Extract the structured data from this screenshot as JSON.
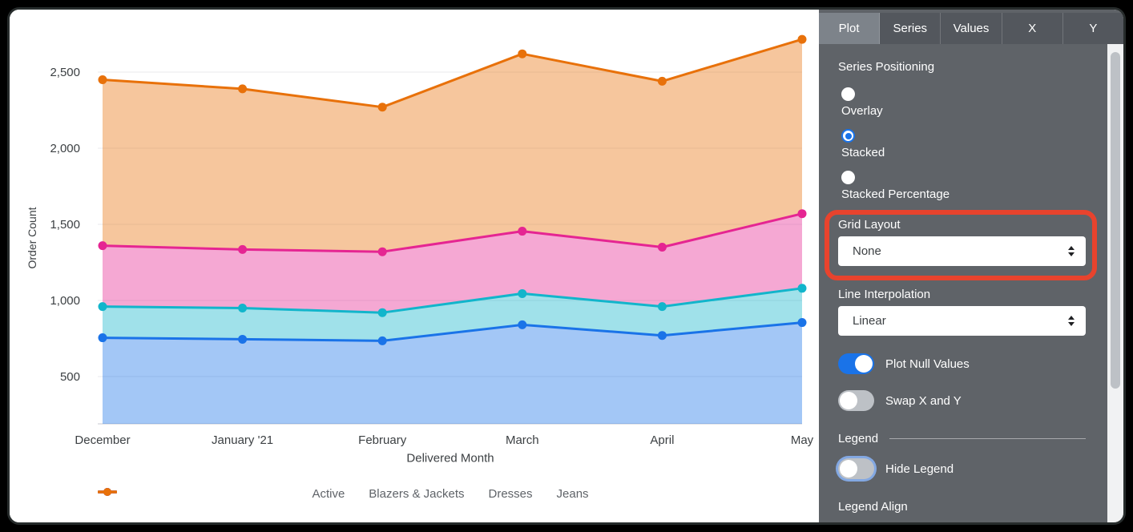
{
  "chart": {
    "y_axis_title": "Order Count",
    "x_axis_title": "Delivered Month",
    "text_color": "#3c4043",
    "legend_text_color": "#5f6368",
    "gridline_color": "#e8eaed"
  },
  "chart_data": {
    "type": "area",
    "stacking": "stacked",
    "title": "",
    "xlabel": "Delivered Month",
    "ylabel": "Order Count",
    "categories": [
      "December",
      "January '21",
      "February",
      "March",
      "April",
      "May"
    ],
    "series": [
      {
        "name": "Active",
        "color": "#1A73E8",
        "values": [
          755,
          745,
          735,
          840,
          770,
          855
        ]
      },
      {
        "name": "Blazers & Jackets",
        "color": "#12B5CB",
        "values": [
          205,
          205,
          185,
          205,
          190,
          225
        ]
      },
      {
        "name": "Dresses",
        "color": "#E52592",
        "values": [
          400,
          385,
          400,
          410,
          390,
          490
        ]
      },
      {
        "name": "Jeans",
        "color": "#E8710A",
        "values": [
          1090,
          1055,
          950,
          1165,
          1090,
          1145
        ]
      }
    ],
    "cumulative_tops": {
      "Active": [
        755,
        745,
        735,
        840,
        770,
        855
      ],
      "Blazers & Jackets": [
        960,
        950,
        920,
        1045,
        960,
        1080
      ],
      "Dresses": [
        1360,
        1335,
        1320,
        1455,
        1350,
        1570
      ],
      "Jeans": [
        2450,
        2390,
        2270,
        2620,
        2440,
        2715
      ]
    },
    "y_tick_values": [
      2500,
      2000,
      1500,
      1000,
      500
    ],
    "y_tick_labels": [
      "2,500",
      "2,000",
      "1,500",
      "1,000",
      "500"
    ],
    "ylim": [
      190,
      2870
    ],
    "grid": "horizontal",
    "legend_position": "bottom"
  },
  "panel": {
    "background": "#5f6368",
    "accent_color": "#1a73e8",
    "highlight_color": "#e8432d",
    "tabs": [
      {
        "label": "Plot",
        "selected": true
      },
      {
        "label": "Series",
        "selected": false
      },
      {
        "label": "Values",
        "selected": false
      },
      {
        "label": "X",
        "selected": false
      },
      {
        "label": "Y",
        "selected": false
      }
    ],
    "series_positioning": {
      "label": "Series Positioning",
      "options": [
        {
          "label": "Overlay",
          "selected": false
        },
        {
          "label": "Stacked",
          "selected": true
        },
        {
          "label": "Stacked Percentage",
          "selected": false
        }
      ]
    },
    "grid_layout": {
      "label": "Grid Layout",
      "value": "None",
      "highlighted": true
    },
    "line_interpolation": {
      "label": "Line Interpolation",
      "value": "Linear"
    },
    "toggles": [
      {
        "label": "Plot Null Values",
        "on": true
      },
      {
        "label": "Swap X and Y",
        "on": false
      }
    ],
    "legend_section": {
      "header": "Legend",
      "hide_legend": {
        "label": "Hide Legend",
        "on": false,
        "focused": true
      },
      "legend_align_label": "Legend Align"
    }
  }
}
